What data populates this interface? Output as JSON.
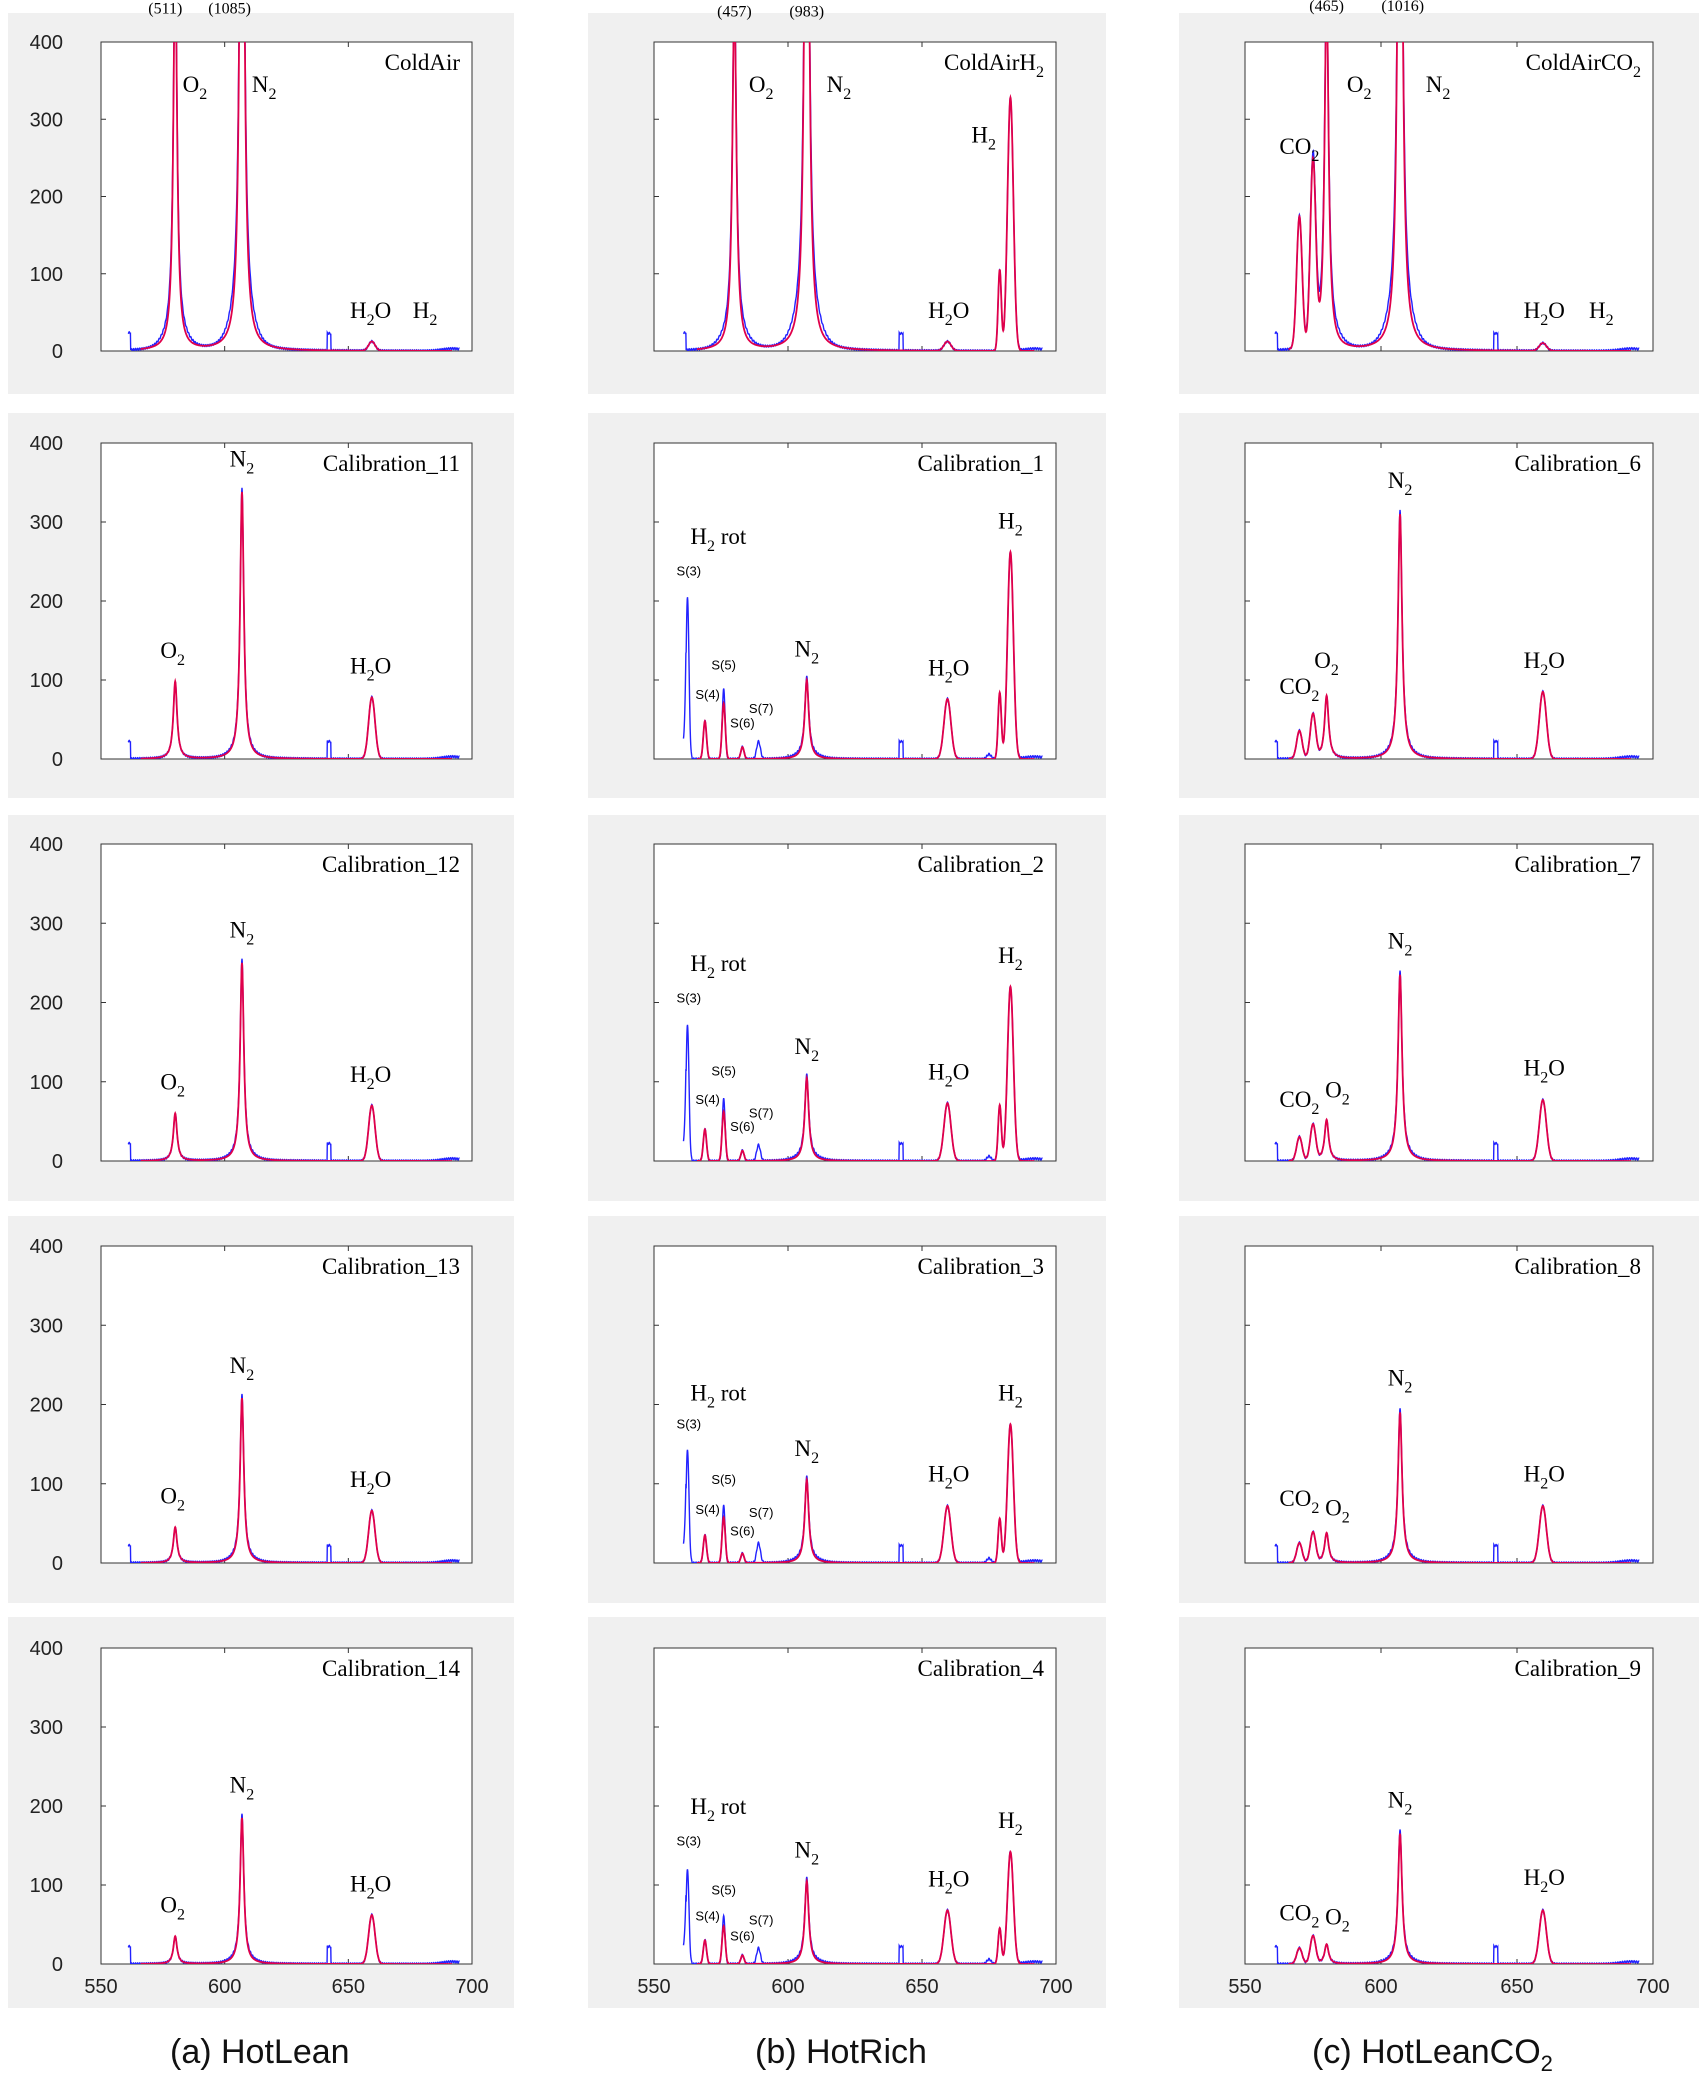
{
  "colors": {
    "measured": "#2222ff",
    "fit": "#e0004a",
    "panel_bg": "#f0f0f0",
    "axis": "#333333"
  },
  "axes": {
    "x_ticks": [
      "550",
      "600",
      "650",
      "700"
    ],
    "y_ticks": [
      "0",
      "100",
      "200",
      "300",
      "400"
    ],
    "xlim": [
      550,
      700
    ],
    "ylim": [
      0,
      400
    ]
  },
  "columns": [
    {
      "caption_prefix": "(a) HotLean",
      "caption_sub": ""
    },
    {
      "caption_prefix": "(b) HotRich",
      "caption_sub": ""
    },
    {
      "caption_prefix": "(c) HotLeanCO",
      "caption_sub": "2"
    }
  ],
  "chart_data": [
    {
      "type": "line",
      "col": 0,
      "row": 0,
      "title": "ColdAir",
      "peaks": {
        "o2": 511,
        "n2": 1085,
        "h2o": 12,
        "h2": 0
      },
      "labels": [
        {
          "text": "(511)",
          "x": 576,
          "y": 437,
          "kind": "count"
        },
        {
          "text": "(1085)",
          "x": 602,
          "y": 437,
          "kind": "count"
        },
        {
          "text": "O",
          "sub": "2",
          "x": 588,
          "y": 335
        },
        {
          "text": "N",
          "sub": "2",
          "x": 616,
          "y": 335
        },
        {
          "text": "H",
          "sub": "2",
          "tail": "O",
          "x": 659,
          "y": 43
        },
        {
          "text": "H",
          "sub": "2",
          "x": 681,
          "y": 43
        }
      ]
    },
    {
      "type": "line",
      "col": 1,
      "row": 0,
      "title": "ColdAirH",
      "title_sub": "2",
      "peaks": {
        "o2": 457,
        "n2": 983,
        "h2o": 12,
        "h2": 328
      },
      "labels": [
        {
          "text": "(457)",
          "x": 580,
          "y": 433,
          "kind": "count"
        },
        {
          "text": "(983)",
          "x": 607,
          "y": 433,
          "kind": "count"
        },
        {
          "text": "O",
          "sub": "2",
          "x": 590,
          "y": 335
        },
        {
          "text": "N",
          "sub": "2",
          "x": 619,
          "y": 335
        },
        {
          "text": "H",
          "sub": "2",
          "tail": "O",
          "x": 660,
          "y": 43
        },
        {
          "text": "H",
          "sub": "2",
          "x": 673,
          "y": 270
        }
      ]
    },
    {
      "type": "line",
      "col": 2,
      "row": 0,
      "title": "ColdAirCO",
      "title_sub": "2",
      "peaks": {
        "o2": 465,
        "n2": 1016,
        "co2a": 170,
        "co2b": 235,
        "h2o": 10,
        "h2": 0
      },
      "labels": [
        {
          "text": "(465)",
          "x": 580,
          "y": 440,
          "kind": "count"
        },
        {
          "text": "(1016)",
          "x": 608,
          "y": 440,
          "kind": "count"
        },
        {
          "text": "CO",
          "sub": "2",
          "x": 570,
          "y": 255
        },
        {
          "text": "O",
          "sub": "2",
          "x": 592,
          "y": 335
        },
        {
          "text": "N",
          "sub": "2",
          "x": 621,
          "y": 335
        },
        {
          "text": "H",
          "sub": "2",
          "tail": "O",
          "x": 660,
          "y": 43
        },
        {
          "text": "H",
          "sub": "2",
          "x": 681,
          "y": 43
        }
      ]
    },
    {
      "type": "line",
      "col": 0,
      "row": 1,
      "title": "Calibration_11",
      "peaks": {
        "o2": 98,
        "n2": 338,
        "h2o": 78
      },
      "labels": [
        {
          "text": "O",
          "sub": "2",
          "x": 579,
          "y": 128
        },
        {
          "text": "N",
          "sub": "2",
          "x": 607,
          "y": 370
        },
        {
          "text": "H",
          "sub": "2",
          "tail": "O",
          "x": 659,
          "y": 108
        }
      ]
    },
    {
      "type": "line",
      "col": 0,
      "row": 2,
      "title": "Calibration_12",
      "peaks": {
        "o2": 60,
        "n2": 250,
        "h2o": 70
      },
      "labels": [
        {
          "text": "O",
          "sub": "2",
          "x": 579,
          "y": 90
        },
        {
          "text": "N",
          "sub": "2",
          "x": 607,
          "y": 282
        },
        {
          "text": "H",
          "sub": "2",
          "tail": "O",
          "x": 659,
          "y": 100
        }
      ]
    },
    {
      "type": "line",
      "col": 0,
      "row": 3,
      "title": "Calibration_13",
      "peaks": {
        "o2": 45,
        "n2": 208,
        "h2o": 66
      },
      "labels": [
        {
          "text": "O",
          "sub": "2",
          "x": 579,
          "y": 75
        },
        {
          "text": "N",
          "sub": "2",
          "x": 607,
          "y": 240
        },
        {
          "text": "H",
          "sub": "2",
          "tail": "O",
          "x": 659,
          "y": 96
        }
      ]
    },
    {
      "type": "line",
      "col": 0,
      "row": 4,
      "title": "Calibration_14",
      "peaks": {
        "o2": 35,
        "n2": 185,
        "h2o": 62
      },
      "labels": [
        {
          "text": "O",
          "sub": "2",
          "x": 579,
          "y": 65
        },
        {
          "text": "N",
          "sub": "2",
          "x": 607,
          "y": 217
        },
        {
          "text": "H",
          "sub": "2",
          "tail": "O",
          "x": 659,
          "y": 92
        }
      ]
    },
    {
      "type": "line",
      "col": 1,
      "row": 1,
      "title": "Calibration_1",
      "peaks": {
        "s3": 205,
        "s4": 48,
        "s5": 88,
        "s6": 15,
        "s7": 22,
        "n2": 100,
        "h2o": 76,
        "h2": 262
      },
      "labels": [
        {
          "text": "H",
          "sub": "2",
          "tail": " rot",
          "x": 574,
          "y": 272
        },
        {
          "text": "S(3)",
          "x": 563,
          "y": 232,
          "kind": "small"
        },
        {
          "text": "S(4)",
          "x": 570,
          "y": 76,
          "kind": "small"
        },
        {
          "text": "S(5)",
          "x": 576,
          "y": 113,
          "kind": "small"
        },
        {
          "text": "S(6)",
          "x": 583,
          "y": 40,
          "kind": "small"
        },
        {
          "text": "S(7)",
          "x": 590,
          "y": 58,
          "kind": "small"
        },
        {
          "text": "N",
          "sub": "2",
          "x": 607,
          "y": 130
        },
        {
          "text": "H",
          "sub": "2",
          "tail": "O",
          "x": 660,
          "y": 106
        },
        {
          "text": "H",
          "sub": "2",
          "x": 683,
          "y": 292
        }
      ]
    },
    {
      "type": "line",
      "col": 1,
      "row": 2,
      "title": "Calibration_2",
      "peaks": {
        "s3": 172,
        "s4": 40,
        "s5": 78,
        "s6": 13,
        "s7": 20,
        "n2": 105,
        "h2o": 73,
        "h2": 220
      },
      "labels": [
        {
          "text": "H",
          "sub": "2",
          "tail": " rot",
          "x": 574,
          "y": 240
        },
        {
          "text": "S(3)",
          "x": 563,
          "y": 200,
          "kind": "small"
        },
        {
          "text": "S(4)",
          "x": 570,
          "y": 72,
          "kind": "small"
        },
        {
          "text": "S(5)",
          "x": 576,
          "y": 108,
          "kind": "small"
        },
        {
          "text": "S(6)",
          "x": 583,
          "y": 38,
          "kind": "small"
        },
        {
          "text": "S(7)",
          "x": 590,
          "y": 55,
          "kind": "small"
        },
        {
          "text": "N",
          "sub": "2",
          "x": 607,
          "y": 135
        },
        {
          "text": "H",
          "sub": "2",
          "tail": "O",
          "x": 660,
          "y": 103
        },
        {
          "text": "H",
          "sub": "2",
          "x": 683,
          "y": 250
        }
      ]
    },
    {
      "type": "line",
      "col": 1,
      "row": 3,
      "title": "Calibration_3",
      "peaks": {
        "s3": 143,
        "s4": 35,
        "s5": 72,
        "s6": 12,
        "s7": 25,
        "n2": 105,
        "h2o": 72,
        "h2": 175
      },
      "labels": [
        {
          "text": "H",
          "sub": "2",
          "tail": " rot",
          "x": 574,
          "y": 205
        },
        {
          "text": "S(3)",
          "x": 563,
          "y": 170,
          "kind": "small"
        },
        {
          "text": "S(4)",
          "x": 570,
          "y": 62,
          "kind": "small"
        },
        {
          "text": "S(5)",
          "x": 576,
          "y": 100,
          "kind": "small"
        },
        {
          "text": "S(6)",
          "x": 583,
          "y": 35,
          "kind": "small"
        },
        {
          "text": "S(7)",
          "x": 590,
          "y": 58,
          "kind": "small"
        },
        {
          "text": "N",
          "sub": "2",
          "x": 607,
          "y": 135
        },
        {
          "text": "H",
          "sub": "2",
          "tail": "O",
          "x": 660,
          "y": 103
        },
        {
          "text": "H",
          "sub": "2",
          "x": 683,
          "y": 205
        }
      ]
    },
    {
      "type": "line",
      "col": 1,
      "row": 4,
      "title": "Calibration_4",
      "peaks": {
        "s3": 120,
        "s4": 30,
        "s5": 60,
        "s6": 11,
        "s7": 20,
        "n2": 105,
        "h2o": 68,
        "h2": 142
      },
      "labels": [
        {
          "text": "H",
          "sub": "2",
          "tail": " rot",
          "x": 574,
          "y": 190
        },
        {
          "text": "S(3)",
          "x": 563,
          "y": 150,
          "kind": "small"
        },
        {
          "text": "S(4)",
          "x": 570,
          "y": 55,
          "kind": "small"
        },
        {
          "text": "S(5)",
          "x": 576,
          "y": 88,
          "kind": "small"
        },
        {
          "text": "S(6)",
          "x": 583,
          "y": 30,
          "kind": "small"
        },
        {
          "text": "S(7)",
          "x": 590,
          "y": 50,
          "kind": "small"
        },
        {
          "text": "N",
          "sub": "2",
          "x": 607,
          "y": 135
        },
        {
          "text": "H",
          "sub": "2",
          "tail": "O",
          "x": 660,
          "y": 98
        },
        {
          "text": "H",
          "sub": "2",
          "x": 683,
          "y": 172
        }
      ]
    },
    {
      "type": "line",
      "col": 2,
      "row": 1,
      "title": "Calibration_6",
      "peaks": {
        "co2a": 35,
        "co2b": 55,
        "o2": 80,
        "n2": 310,
        "h2o": 85
      },
      "labels": [
        {
          "text": "CO",
          "sub": "2",
          "x": 570,
          "y": 82
        },
        {
          "text": "O",
          "sub": "2",
          "x": 580,
          "y": 115
        },
        {
          "text": "N",
          "sub": "2",
          "x": 607,
          "y": 343
        },
        {
          "text": "H",
          "sub": "2",
          "tail": "O",
          "x": 660,
          "y": 115
        }
      ]
    },
    {
      "type": "line",
      "col": 2,
      "row": 2,
      "title": "Calibration_7",
      "peaks": {
        "co2a": 30,
        "co2b": 45,
        "o2": 52,
        "n2": 235,
        "h2o": 77
      },
      "labels": [
        {
          "text": "CO",
          "sub": "2",
          "x": 570,
          "y": 68
        },
        {
          "text": "O",
          "sub": "2",
          "x": 584,
          "y": 80
        },
        {
          "text": "N",
          "sub": "2",
          "x": 607,
          "y": 268
        },
        {
          "text": "H",
          "sub": "2",
          "tail": "O",
          "x": 660,
          "y": 108
        }
      ]
    },
    {
      "type": "line",
      "col": 2,
      "row": 3,
      "title": "Calibration_8",
      "peaks": {
        "co2a": 25,
        "co2b": 38,
        "o2": 38,
        "n2": 190,
        "h2o": 72
      },
      "labels": [
        {
          "text": "CO",
          "sub": "2",
          "x": 570,
          "y": 72
        },
        {
          "text": "O",
          "sub": "2",
          "x": 584,
          "y": 60
        },
        {
          "text": "N",
          "sub": "2",
          "x": 607,
          "y": 224
        },
        {
          "text": "H",
          "sub": "2",
          "tail": "O",
          "x": 660,
          "y": 103
        }
      ]
    },
    {
      "type": "line",
      "col": 2,
      "row": 4,
      "title": "Calibration_9",
      "peaks": {
        "co2a": 20,
        "co2b": 35,
        "o2": 25,
        "n2": 165,
        "h2o": 68
      },
      "labels": [
        {
          "text": "CO",
          "sub": "2",
          "x": 570,
          "y": 55
        },
        {
          "text": "O",
          "sub": "2",
          "x": 584,
          "y": 50
        },
        {
          "text": "N",
          "sub": "2",
          "x": 607,
          "y": 198
        },
        {
          "text": "H",
          "sub": "2",
          "tail": "O",
          "x": 660,
          "y": 100
        }
      ]
    }
  ]
}
